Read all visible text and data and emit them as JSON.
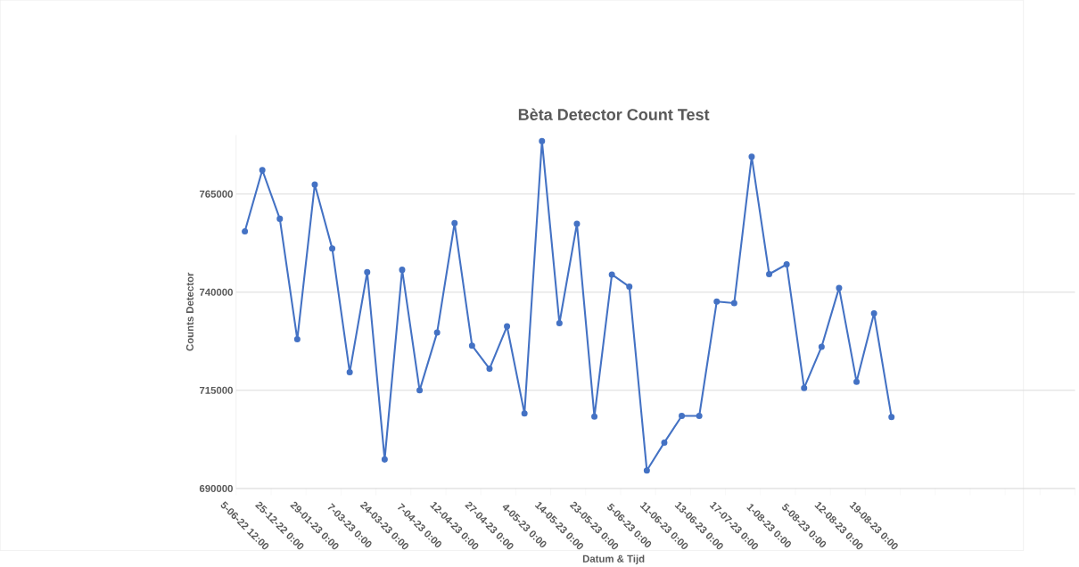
{
  "chart_data": {
    "type": "line",
    "title": "Bèta Detector Count Test",
    "xlabel": "Datum & Tijd",
    "ylabel": "Counts Detector",
    "categories": [
      "5-06-22 12:00",
      null,
      "25-12-22 0:00",
      null,
      "29-01-23 0:00",
      null,
      "7-03-23 0:00",
      null,
      "24-03-23 0:00",
      null,
      "7-04-23 0:00",
      null,
      "12-04-23 0:00",
      null,
      "27-04-23 0:00",
      null,
      "4-05-23 0:00",
      null,
      "14-05-23 0:00",
      null,
      "23-05-23 0:00",
      null,
      "5-06-23 0:00",
      null,
      "11-06-23 0:00",
      null,
      "13-06-23 0:00",
      null,
      "17-07-23 0:00",
      null,
      "1-08-23 0:00",
      null,
      "5-08-23 0:00",
      null,
      "12-08-23 0:00",
      null,
      "19-08-23 0:00",
      null,
      null,
      null,
      null,
      null,
      null,
      null,
      null,
      null,
      null,
      null
    ],
    "series": [
      {
        "color": "#4472c4",
        "values": [
          755500,
          771100,
          758700,
          728000,
          767400,
          751100,
          719600,
          745100,
          697400,
          745700,
          715000,
          729700,
          757600,
          726400,
          720500,
          731300,
          709100,
          778500,
          732100,
          757400,
          708300,
          744500,
          741400,
          694600,
          701700,
          708500,
          708500,
          737600,
          737200,
          774500,
          744600,
          747100,
          715600,
          726100,
          741100,
          717200,
          734600,
          708200,
          null,
          null,
          null,
          null,
          null,
          null,
          null,
          null,
          null,
          null
        ]
      }
    ],
    "ylim": [
      690000,
      780000
    ],
    "yticks": [
      690000,
      715000,
      740000,
      765000
    ],
    "grid": "y",
    "marker": "circle",
    "line_style": "solid"
  }
}
